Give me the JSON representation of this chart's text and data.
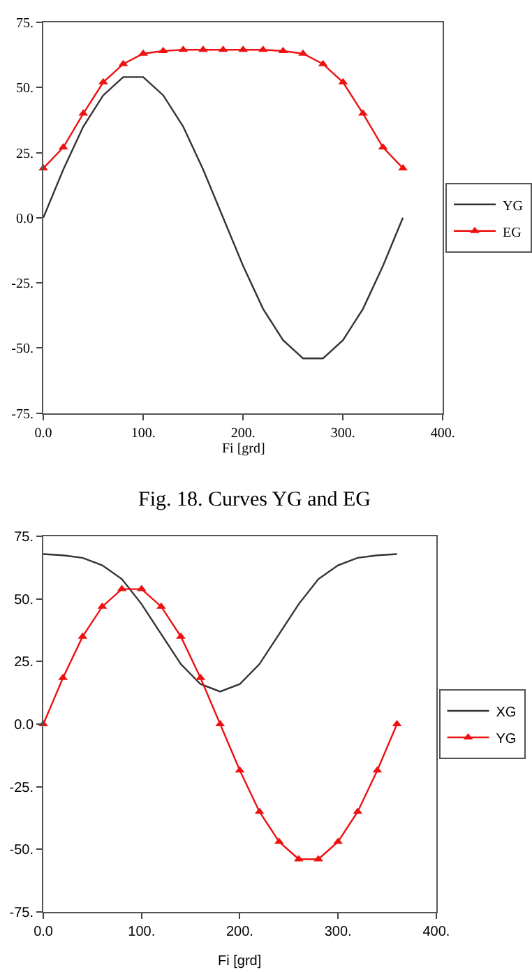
{
  "chart_data": [
    {
      "type": "line",
      "annotations": [
        "Fig. 18. Curves YG and EG"
      ],
      "xlabel": "Fi [grd]",
      "x": [
        0,
        20,
        40,
        60,
        80,
        100,
        120,
        140,
        160,
        180,
        200,
        220,
        240,
        260,
        280,
        300,
        320,
        340,
        360
      ],
      "series": [
        {
          "name": "YG",
          "color": "#333333",
          "marker": "none",
          "values": [
            0,
            18.5,
            35,
            47,
            54,
            54,
            47,
            35,
            18.5,
            0,
            -18.5,
            -35,
            -47,
            -54,
            -54,
            -47,
            -35,
            -18.5,
            0
          ]
        },
        {
          "name": "EG",
          "color": "#ee1111",
          "marker": "triangle",
          "values": [
            19,
            27,
            40,
            52,
            59,
            63,
            64,
            64.5,
            64.5,
            64.5,
            64.5,
            64.5,
            64,
            63,
            59,
            52,
            40,
            27,
            19
          ]
        }
      ],
      "xlim": [
        0,
        400
      ],
      "xticks": [
        {
          "value": 0,
          "label": "0.0"
        },
        {
          "value": 100,
          "label": "100."
        },
        {
          "value": 200,
          "label": "200."
        },
        {
          "value": 300,
          "label": "300."
        },
        {
          "value": 400,
          "label": "400."
        }
      ],
      "ylim": [
        -75,
        75
      ],
      "yticks": [
        {
          "value": -75,
          "label": "-75."
        },
        {
          "value": -50,
          "label": "-50."
        },
        {
          "value": -25,
          "label": "-25."
        },
        {
          "value": 0,
          "label": "0.0"
        },
        {
          "value": 25,
          "label": "25."
        },
        {
          "value": 50,
          "label": "50."
        },
        {
          "value": 75,
          "label": "75."
        }
      ],
      "legend": "right"
    },
    {
      "type": "line",
      "xlabel": "Fi [grd]",
      "x": [
        0,
        20,
        40,
        60,
        80,
        100,
        120,
        140,
        160,
        180,
        200,
        220,
        240,
        260,
        280,
        300,
        320,
        340,
        360
      ],
      "series": [
        {
          "name": "XG",
          "color": "#333333",
          "marker": "none",
          "values": [
            68,
            67.5,
            66.5,
            63.5,
            58,
            48,
            36,
            24,
            16,
            13,
            16,
            24,
            36,
            48,
            58,
            63.5,
            66.5,
            67.5,
            68
          ]
        },
        {
          "name": "YG",
          "color": "#ee1111",
          "marker": "triangle",
          "values": [
            0,
            18.5,
            35,
            47,
            54,
            54,
            47,
            35,
            18.5,
            0,
            -18.5,
            -35,
            -47,
            -54,
            -54,
            -47,
            -35,
            -18.5,
            0
          ]
        }
      ],
      "xlim": [
        0,
        400
      ],
      "xticks": [
        {
          "value": 0,
          "label": "0.0"
        },
        {
          "value": 100,
          "label": "100."
        },
        {
          "value": 200,
          "label": "200."
        },
        {
          "value": 300,
          "label": "300."
        },
        {
          "value": 400,
          "label": "400."
        }
      ],
      "ylim": [
        -75,
        75
      ],
      "yticks": [
        {
          "value": -75,
          "label": "-75."
        },
        {
          "value": -50,
          "label": "-50."
        },
        {
          "value": -25,
          "label": "-25."
        },
        {
          "value": 0,
          "label": "0.0"
        },
        {
          "value": 25,
          "label": "25."
        },
        {
          "value": 50,
          "label": "50."
        },
        {
          "value": 75,
          "label": "75."
        }
      ],
      "legend": "right"
    }
  ]
}
